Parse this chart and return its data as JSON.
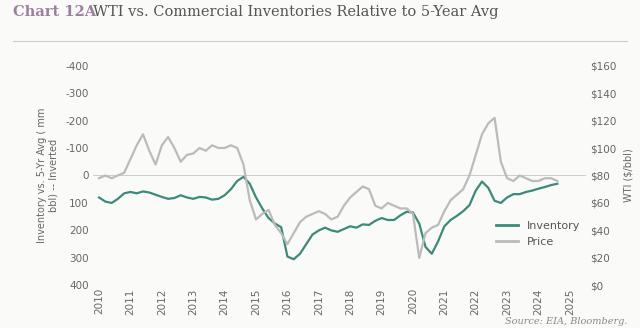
{
  "title_bold": "Chart 12A",
  "title_bold_color": "#9B7FA0",
  "title_regular": "WTI vs. Commercial Inventories Relative to 5-Year Avg",
  "title_color": "#555555",
  "title_fontsize": 10.5,
  "source_text": "Source: EIA, Bloomberg.",
  "ylabel_left": "Inventory vs. 5-Yr Avg ( mm\nbbl) -- Inverted",
  "ylabel_right": "WTI ($/bbl)",
  "ylim_left": [
    400,
    -400
  ],
  "ylim_right": [
    0,
    160
  ],
  "yticks_left": [
    -400,
    -300,
    -200,
    -100,
    0,
    100,
    200,
    300,
    400
  ],
  "yticks_right": [
    0,
    20,
    40,
    60,
    80,
    100,
    120,
    140,
    160
  ],
  "xlim": [
    2009.8,
    2025.5
  ],
  "xticks": [
    2010,
    2011,
    2012,
    2013,
    2014,
    2015,
    2016,
    2017,
    2018,
    2019,
    2020,
    2021,
    2022,
    2023,
    2024,
    2025
  ],
  "inventory_color": "#3B8A7A",
  "price_color": "#BBBBBB",
  "background_color": "#FAFAF8",
  "legend_inventory": "Inventory",
  "legend_price": "Price",
  "inventory_linewidth": 1.6,
  "price_linewidth": 1.6,
  "inventory_data_x": [
    2010.0,
    2010.2,
    2010.4,
    2010.6,
    2010.8,
    2011.0,
    2011.2,
    2011.4,
    2011.6,
    2011.8,
    2012.0,
    2012.2,
    2012.4,
    2012.6,
    2012.8,
    2013.0,
    2013.2,
    2013.4,
    2013.6,
    2013.8,
    2014.0,
    2014.2,
    2014.4,
    2014.6,
    2014.8,
    2015.0,
    2015.2,
    2015.4,
    2015.6,
    2015.8,
    2016.0,
    2016.2,
    2016.4,
    2016.6,
    2016.8,
    2017.0,
    2017.2,
    2017.4,
    2017.6,
    2017.8,
    2018.0,
    2018.2,
    2018.4,
    2018.6,
    2018.8,
    2019.0,
    2019.2,
    2019.4,
    2019.6,
    2019.8,
    2020.0,
    2020.2,
    2020.4,
    2020.6,
    2020.8,
    2021.0,
    2021.2,
    2021.4,
    2021.6,
    2021.8,
    2022.0,
    2022.2,
    2022.4,
    2022.6,
    2022.8,
    2023.0,
    2023.2,
    2023.4,
    2023.6,
    2023.8,
    2024.0,
    2024.2,
    2024.4,
    2024.6
  ],
  "inventory_data_y": [
    80,
    95,
    100,
    85,
    65,
    60,
    65,
    58,
    62,
    70,
    78,
    85,
    82,
    72,
    80,
    85,
    78,
    80,
    88,
    85,
    72,
    50,
    20,
    5,
    30,
    80,
    120,
    155,
    175,
    188,
    295,
    305,
    285,
    250,
    215,
    200,
    190,
    200,
    205,
    195,
    185,
    190,
    178,
    180,
    165,
    155,
    162,
    162,
    145,
    132,
    135,
    175,
    260,
    285,
    240,
    185,
    162,
    147,
    130,
    108,
    55,
    22,
    45,
    92,
    100,
    80,
    68,
    68,
    60,
    55,
    48,
    42,
    35,
    30
  ],
  "price_data_x": [
    2010.0,
    2010.2,
    2010.4,
    2010.6,
    2010.8,
    2011.0,
    2011.2,
    2011.4,
    2011.6,
    2011.8,
    2012.0,
    2012.2,
    2012.4,
    2012.6,
    2012.8,
    2013.0,
    2013.2,
    2013.4,
    2013.6,
    2013.8,
    2014.0,
    2014.2,
    2014.4,
    2014.6,
    2014.8,
    2015.0,
    2015.2,
    2015.4,
    2015.6,
    2015.8,
    2016.0,
    2016.2,
    2016.4,
    2016.6,
    2016.8,
    2017.0,
    2017.2,
    2017.4,
    2017.6,
    2017.8,
    2018.0,
    2018.2,
    2018.4,
    2018.6,
    2018.8,
    2019.0,
    2019.2,
    2019.4,
    2019.6,
    2019.8,
    2020.0,
    2020.2,
    2020.4,
    2020.6,
    2020.8,
    2021.0,
    2021.2,
    2021.4,
    2021.6,
    2021.8,
    2022.0,
    2022.2,
    2022.4,
    2022.6,
    2022.8,
    2023.0,
    2023.2,
    2023.4,
    2023.6,
    2023.8,
    2024.0,
    2024.2,
    2024.4,
    2024.6
  ],
  "price_data_y": [
    78,
    80,
    78,
    80,
    82,
    92,
    102,
    110,
    98,
    88,
    102,
    108,
    100,
    90,
    95,
    96,
    100,
    98,
    102,
    100,
    100,
    102,
    100,
    88,
    62,
    48,
    52,
    55,
    44,
    38,
    30,
    38,
    46,
    50,
    52,
    54,
    52,
    48,
    50,
    58,
    64,
    68,
    72,
    70,
    58,
    56,
    60,
    58,
    56,
    56,
    52,
    20,
    38,
    42,
    44,
    54,
    62,
    66,
    70,
    80,
    95,
    110,
    118,
    122,
    90,
    78,
    76,
    80,
    78,
    76,
    76,
    78,
    78,
    76
  ]
}
